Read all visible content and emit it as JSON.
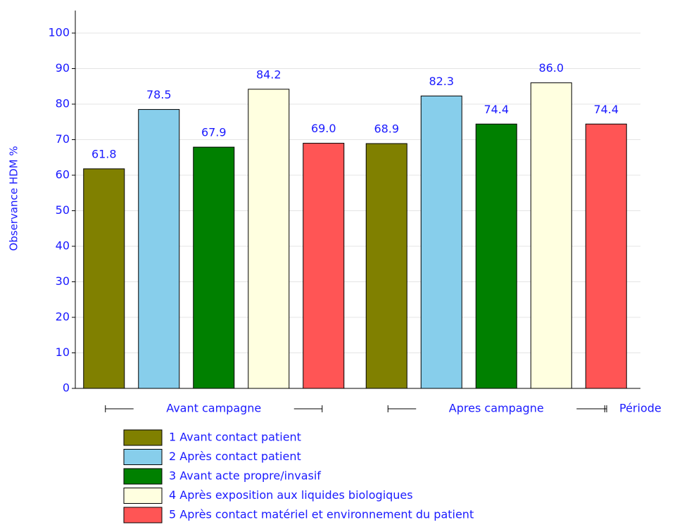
{
  "chart_data": {
    "type": "bar",
    "y_label": "Observance HDM %",
    "x_label": "Période",
    "categories": [
      "Avant campagne",
      "Apres campagne"
    ],
    "series": [
      {
        "name": "1 Avant contact patient",
        "color": "#808000",
        "values": [
          61.8,
          68.9
        ],
        "value_labels": [
          "61.8",
          "68.9"
        ]
      },
      {
        "name": "2 Après contact patient",
        "color": "#87ceeb",
        "values": [
          78.5,
          82.3
        ],
        "value_labels": [
          "78.5",
          "82.3"
        ]
      },
      {
        "name": "3 Avant acte propre/invasif",
        "color": "#008000",
        "values": [
          67.9,
          74.4
        ],
        "value_labels": [
          "67.9",
          "74.4"
        ]
      },
      {
        "name": "4 Après exposition aux liquides biologiques",
        "color": "#ffffe0",
        "values": [
          84.2,
          86.0
        ],
        "value_labels": [
          "84.2",
          "86.0"
        ]
      },
      {
        "name": "5 Après contact matériel et environnement du patient",
        "color": "#ff5555",
        "values": [
          69.0,
          74.4
        ],
        "value_labels": [
          "69.0",
          "74.4"
        ]
      }
    ],
    "ylim": [
      0,
      100
    ],
    "yticks": [
      0,
      10,
      20,
      30,
      40,
      50,
      60,
      70,
      80,
      90,
      100
    ],
    "grid": true
  }
}
